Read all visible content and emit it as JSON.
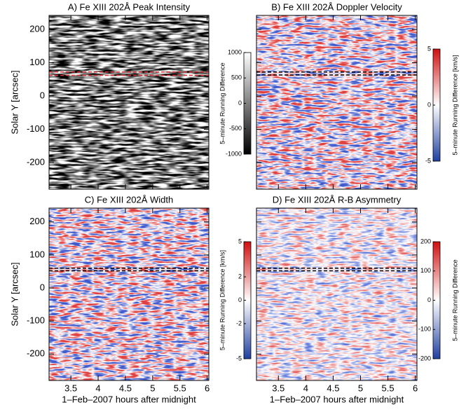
{
  "chart_data": [
    {
      "type": "heatmap",
      "title": "A) Fe XIII 202Å Peak Intensity",
      "ylabel": "Solar Y [arcsec]",
      "colormap": "gray",
      "xlim": [
        3.1,
        6.03
      ],
      "xticks": [
        3.5,
        4.0,
        4.5,
        5.0,
        5.5,
        6.0
      ],
      "xtick_labels": false,
      "ylim": [
        -280,
        242
      ],
      "yticks": [
        -200,
        -100,
        0,
        100,
        200
      ],
      "ytick_labels": true,
      "reference_lines": {
        "color": "#e03030",
        "values": [
          62,
          72
        ]
      },
      "colorbar": {
        "label": "5–minute Running Difference",
        "lim": [
          -1000,
          1000
        ],
        "ticks": [
          -1000,
          -500,
          0,
          500,
          1000
        ]
      }
    },
    {
      "type": "heatmap",
      "title": "B) Fe XIII 202Å Doppler Velocity",
      "colormap": "bwr",
      "xlim": [
        3.1,
        6.03
      ],
      "xticks": [
        3.5,
        4.0,
        4.5,
        5.0,
        5.5,
        6.0
      ],
      "xtick_labels": false,
      "ylim": [
        -280,
        242
      ],
      "yticks": [
        -200,
        -100,
        0,
        100,
        200
      ],
      "ytick_labels": false,
      "reference_lines": {
        "color": "#000000",
        "values": [
          63,
          72
        ]
      },
      "colorbar": {
        "label": "5–minute Running Difference [km/s]",
        "lim": [
          -5,
          5
        ],
        "ticks": [
          -5,
          0,
          5
        ]
      }
    },
    {
      "type": "heatmap",
      "title": "C) Fe XIII 202Å Width",
      "ylabel": "Solar Y [arcsec]",
      "xlabel": "1–Feb–2007 hours after midnight",
      "colormap": "bwr",
      "xlim": [
        3.1,
        6.03
      ],
      "xticks": [
        3.5,
        4.0,
        4.5,
        5.0,
        5.5,
        6.0
      ],
      "xtick_labels": true,
      "ylim": [
        -280,
        242
      ],
      "yticks": [
        -200,
        -100,
        0,
        100,
        200
      ],
      "ytick_labels": true,
      "reference_lines": {
        "color": "#000000",
        "values": [
          52,
          60
        ]
      },
      "colorbar": {
        "label": "5–minute Running Difference [km/s]",
        "lim": [
          -5,
          5
        ],
        "ticks": [
          -5,
          -2,
          0,
          2,
          5
        ]
      }
    },
    {
      "type": "heatmap",
      "title": "D) Fe XIII 202Å R-B Asymmetry",
      "xlabel": "1–Feb–2007 hours after midnight",
      "colormap": "bwr-faint",
      "xlim": [
        3.1,
        6.03
      ],
      "xticks": [
        3.5,
        4.0,
        4.5,
        5.0,
        5.5,
        6.0
      ],
      "xtick_labels": true,
      "ylim": [
        -280,
        242
      ],
      "yticks": [
        -200,
        -100,
        0,
        100,
        200
      ],
      "ytick_labels": false,
      "reference_lines": {
        "color": "#000000",
        "values": [
          52,
          60
        ]
      },
      "colorbar": {
        "label": "5–minute Running Difference",
        "lim": [
          -200,
          200
        ],
        "ticks": [
          -200,
          -100,
          0,
          100,
          200
        ]
      }
    }
  ]
}
